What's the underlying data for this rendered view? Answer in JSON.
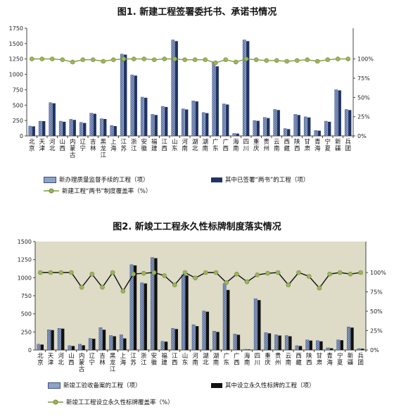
{
  "colors": {
    "hatch_bar": "#8fa3c9",
    "hatch_stroke": "#3a4f82",
    "dark_bar": "#1f3364",
    "black_bar": "#111111",
    "line": "#7f9a3f",
    "marker": "#9db55a",
    "plot_bg_2": "#dedbc7"
  },
  "chart_data": [
    {
      "type": "bar",
      "title": "图1. 新建工程签署委托书、承诺书情况",
      "categories": [
        "北京",
        "天津",
        "河北",
        "山西",
        "内蒙古",
        "辽宁",
        "吉林",
        "黑龙江",
        "上海",
        "江苏",
        "浙江",
        "安徽",
        "福建",
        "江西",
        "山东",
        "河南",
        "湖北",
        "湖南",
        "广东",
        "广西",
        "海南",
        "四川",
        "重庆",
        "贵州",
        "云南",
        "西藏",
        "陕西",
        "甘肃",
        "青海",
        "宁夏",
        "新疆",
        "兵团"
      ],
      "yticks": [
        "0",
        "250",
        "500",
        "750",
        "1000",
        "1250",
        "1500",
        "1750"
      ],
      "y2ticks": [
        "0%",
        "25%",
        "50%",
        "75%",
        "100%"
      ],
      "ylim": [
        0,
        1750
      ],
      "y2lim": [
        0,
        1.4
      ],
      "series": [
        {
          "name": "新办理质量监督手续的工程（项）",
          "kind": "bar",
          "values": [
            160,
            240,
            540,
            240,
            270,
            220,
            370,
            280,
            170,
            1330,
            990,
            630,
            350,
            480,
            1560,
            440,
            570,
            380,
            1200,
            520,
            40,
            1560,
            250,
            300,
            430,
            120,
            350,
            310,
            90,
            240,
            750,
            430
          ]
        },
        {
          "name": "其中已签署“两书”的工程（项）",
          "kind": "bar",
          "values": [
            155,
            240,
            530,
            230,
            260,
            210,
            360,
            275,
            160,
            1320,
            980,
            620,
            340,
            470,
            1540,
            430,
            560,
            370,
            1130,
            510,
            38,
            1540,
            245,
            290,
            420,
            110,
            340,
            300,
            85,
            230,
            740,
            420
          ]
        },
        {
          "name": "新建工程“两书”制度覆盖率（%）",
          "kind": "line",
          "values": [
            1.0,
            1.0,
            1.0,
            0.99,
            0.96,
            0.99,
            0.99,
            0.97,
            0.99,
            1.0,
            1.0,
            1.0,
            0.99,
            1.0,
            1.0,
            0.99,
            0.99,
            0.99,
            0.95,
            0.99,
            0.96,
            1.0,
            0.99,
            0.98,
            0.98,
            0.97,
            0.98,
            0.99,
            0.97,
            0.99,
            1.0,
            1.0
          ]
        }
      ]
    },
    {
      "type": "bar",
      "title": "图2. 新竣工工程永久性标牌制度落实情况",
      "categories": [
        "北京",
        "天津",
        "河北",
        "山西",
        "内蒙古",
        "辽宁",
        "吉林",
        "黑龙江",
        "上海",
        "江苏",
        "浙江",
        "安徽",
        "福建",
        "江西",
        "山东",
        "河南",
        "湖北",
        "湖南",
        "广东",
        "广西",
        "海南",
        "四川",
        "重庆",
        "贵州",
        "云南",
        "西藏",
        "陕西",
        "甘肃",
        "青海",
        "宁夏",
        "新疆",
        "兵团"
      ],
      "yticks": [
        "0",
        "250",
        "500",
        "750",
        "1000",
        "1250",
        "1500"
      ],
      "y2ticks": [
        "0%",
        "25%",
        "50%",
        "75%",
        "100%"
      ],
      "ylim": [
        0,
        1500
      ],
      "y2lim": [
        0,
        1.4
      ],
      "series": [
        {
          "name": "新竣工验收备案的工程（项）",
          "kind": "bar",
          "values": [
            80,
            280,
            300,
            60,
            80,
            160,
            310,
            200,
            210,
            1180,
            930,
            1280,
            120,
            300,
            1040,
            350,
            540,
            260,
            920,
            220,
            10,
            710,
            240,
            210,
            200,
            60,
            140,
            130,
            30,
            140,
            320,
            20
          ]
        },
        {
          "name": "其中设立永久性标牌的工程（项）",
          "kind": "bar",
          "values": [
            75,
            275,
            295,
            55,
            65,
            155,
            280,
            190,
            160,
            1170,
            920,
            1270,
            115,
            290,
            1030,
            330,
            530,
            250,
            830,
            210,
            8,
            690,
            230,
            200,
            190,
            55,
            130,
            120,
            24,
            135,
            310,
            18
          ]
        },
        {
          "name": "新竣工工程设立永久性标牌覆盖率（%）",
          "kind": "line",
          "values": [
            1.0,
            1.0,
            1.0,
            1.0,
            0.81,
            0.98,
            0.81,
            1.0,
            0.76,
            0.98,
            0.99,
            1.0,
            0.96,
            0.84,
            1.0,
            0.93,
            1.0,
            1.0,
            0.87,
            0.98,
            0.88,
            0.97,
            0.99,
            1.0,
            0.84,
            1.0,
            0.95,
            0.8,
            0.98,
            1.0,
            0.98,
            1.0
          ]
        }
      ]
    }
  ]
}
